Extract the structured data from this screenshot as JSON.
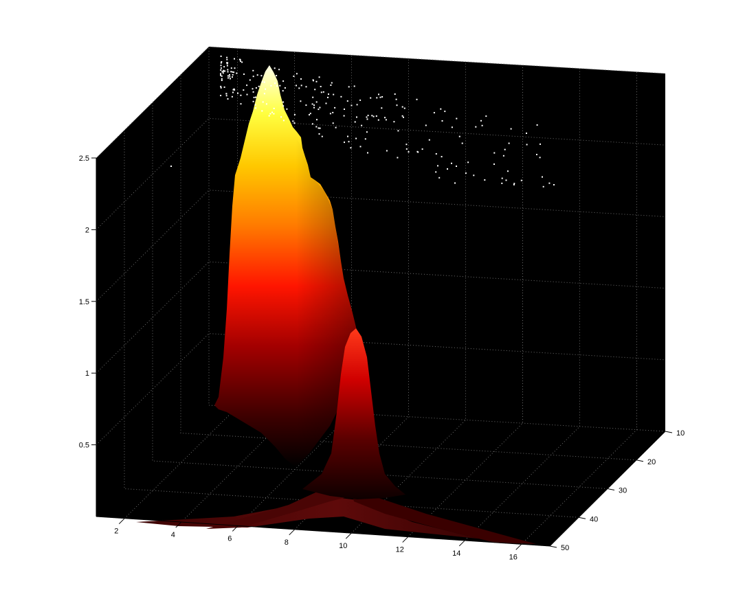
{
  "chart_data": {
    "type": "surface",
    "title": "",
    "xlabel": "",
    "ylabel": "",
    "zlabel": "",
    "grid": true,
    "colormap": "hot",
    "background_color": "#000000",
    "grid_color": "#7a7a7a",
    "x_ticks": [
      "2",
      "4",
      "6",
      "8",
      "10",
      "12",
      "14",
      "16"
    ],
    "y_ticks": [
      "10",
      "20",
      "30",
      "40",
      "50"
    ],
    "z_ticks": [
      "0.5",
      "1",
      "1.5",
      "2",
      "2.5"
    ],
    "xlim": [
      1,
      17
    ],
    "ylim": [
      10,
      50
    ],
    "zlim": [
      0,
      2.5
    ],
    "peak": {
      "x": 6,
      "y": 13,
      "z": 2.45
    },
    "secondary_peak": {
      "x": 10,
      "y": 33,
      "z": 1.25
    },
    "color_stops": [
      "#1a0000",
      "#6a0000",
      "#cc0000",
      "#ff2a00",
      "#ff7f00",
      "#ffc000",
      "#ffff30",
      "#ffffd0"
    ]
  }
}
